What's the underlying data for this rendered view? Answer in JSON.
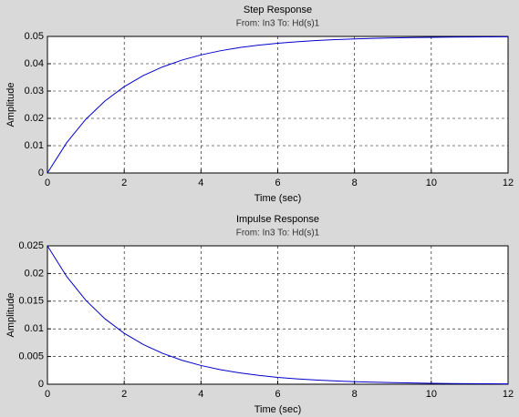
{
  "chart_data": [
    {
      "type": "line",
      "title": "Step Response",
      "subtitle": "From: In3  To: Hd(s)1",
      "xlabel": "Time (sec)",
      "ylabel": "Amplitude",
      "x": [
        0,
        0.5,
        1,
        1.5,
        2,
        2.5,
        3,
        3.5,
        4,
        4.5,
        5,
        5.5,
        6,
        6.5,
        7,
        7.5,
        8,
        8.5,
        9,
        9.5,
        10,
        10.5,
        11,
        11.5,
        12
      ],
      "values": [
        0,
        0.01106,
        0.01967,
        0.02638,
        0.03161,
        0.03568,
        0.03884,
        0.04131,
        0.04323,
        0.04473,
        0.0459,
        0.0468,
        0.04751,
        0.04806,
        0.04849,
        0.04882,
        0.04908,
        0.04929,
        0.04944,
        0.04957,
        0.04966,
        0.04974,
        0.0498,
        0.04984,
        0.04988
      ],
      "color": "#0000cc",
      "grid": true,
      "xlim": [
        0,
        12
      ],
      "xticks": [
        0,
        2,
        4,
        6,
        8,
        10,
        12
      ],
      "ylim": [
        0,
        0.05
      ],
      "yticks": [
        0,
        0.01,
        0.02,
        0.03,
        0.04,
        0.05
      ]
    },
    {
      "type": "line",
      "title": "Impulse Response",
      "subtitle": "From: In3  To: Hd(s)1",
      "xlabel": "Time (sec)",
      "ylabel": "Amplitude",
      "x": [
        0,
        0.5,
        1,
        1.5,
        2,
        2.5,
        3,
        3.5,
        4,
        4.5,
        5,
        5.5,
        6,
        6.5,
        7,
        7.5,
        8,
        8.5,
        9,
        9.5,
        10,
        10.5,
        11,
        11.5,
        12
      ],
      "values": [
        0.025,
        0.01947,
        0.01516,
        0.01181,
        0.0092,
        0.00716,
        0.00558,
        0.00434,
        0.00338,
        0.00264,
        0.00205,
        0.0016,
        0.00124,
        0.00097,
        0.00076,
        0.00059,
        0.00046,
        0.00036,
        0.00028,
        0.00022,
        0.00017,
        0.00013,
        0.0001,
        8e-05,
        6e-05
      ],
      "color": "#0000cc",
      "grid": true,
      "xlim": [
        0,
        12
      ],
      "xticks": [
        0,
        2,
        4,
        6,
        8,
        10,
        12
      ],
      "ylim": [
        0,
        0.025
      ],
      "yticks": [
        0,
        0.005,
        0.01,
        0.015,
        0.02,
        0.025
      ]
    }
  ]
}
